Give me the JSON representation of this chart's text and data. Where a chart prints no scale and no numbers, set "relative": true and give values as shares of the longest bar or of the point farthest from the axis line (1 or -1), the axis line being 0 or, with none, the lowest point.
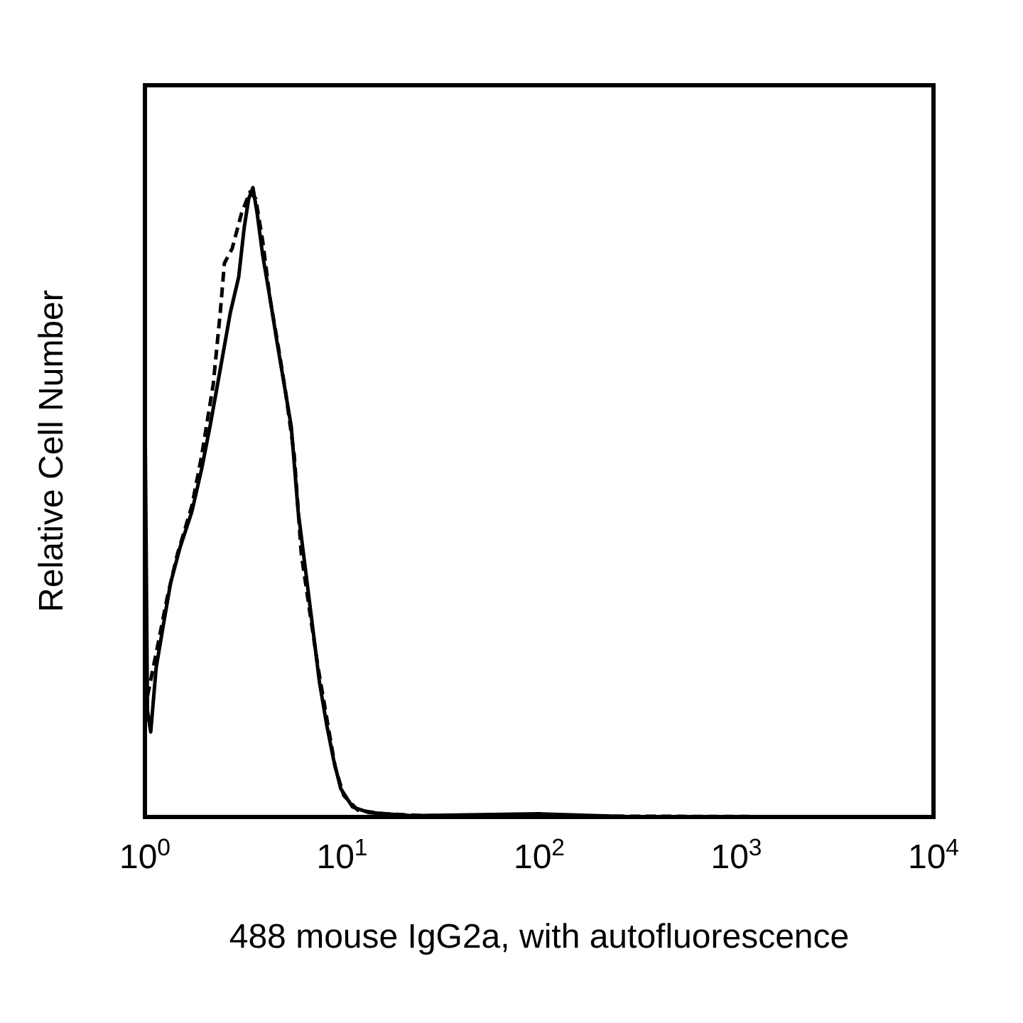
{
  "chart_data": {
    "type": "line",
    "relative": true,
    "log": "x",
    "xlabel": "488 mouse IgG2a, with autofluorescence",
    "ylabel": "Relative Cell Number",
    "xlim": [
      1,
      10000
    ],
    "xticks": [
      {
        "value": 1,
        "label": "10$^{0}$"
      },
      {
        "value": 10,
        "label": "10$^{1}$"
      },
      {
        "value": 100,
        "label": "10$^{2}$"
      },
      {
        "value": 1000,
        "label": "10$^{3}$"
      },
      {
        "value": 10000,
        "label": "10$^{4}$"
      }
    ],
    "grid": false,
    "series": [
      {
        "color": "#000000",
        "line_style": "solid",
        "x": [
          1,
          1.03,
          1.07,
          1.14,
          1.24,
          1.35,
          1.51,
          1.73,
          1.94,
          2.14,
          2.41,
          2.71,
          2.99,
          3.19,
          3.36,
          3.53,
          3.71,
          3.96,
          4.31,
          4.67,
          5.08,
          5.52,
          5.99,
          6.51,
          7.07,
          7.68,
          8.35,
          9.07,
          9.85,
          11.3,
          13.7,
          22.6,
          100,
          321,
          10000
        ],
        "values": [
          0.666,
          0.169,
          0.135,
          0.237,
          0.305,
          0.372,
          0.429,
          0.485,
          0.553,
          0.621,
          0.711,
          0.801,
          0.858,
          0.937,
          0.982,
          1,
          0.959,
          0.892,
          0.824,
          0.756,
          0.688,
          0.621,
          0.485,
          0.395,
          0.305,
          0.214,
          0.147,
          0.09,
          0.045,
          0.016,
          0.007,
          0.002,
          0.005,
          0,
          0
        ]
      },
      {
        "color": "#000000",
        "line_style": "dashed",
        "x": [
          1.03,
          1.14,
          1.3,
          1.46,
          1.73,
          1.94,
          2.22,
          2.41,
          2.53,
          2.77,
          3.09,
          3.41,
          3.65,
          3.96,
          4.31,
          4.76,
          5.16,
          5.72,
          6.21,
          6.85,
          7.56,
          8.35,
          9.23,
          10.2,
          12,
          16.2,
          26.7,
          10000
        ],
        "values": [
          0.192,
          0.26,
          0.35,
          0.417,
          0.494,
          0.574,
          0.687,
          0.801,
          0.88,
          0.903,
          0.959,
          0.993,
          0.982,
          0.914,
          0.824,
          0.745,
          0.677,
          0.575,
          0.418,
          0.327,
          0.237,
          0.158,
          0.079,
          0.034,
          0.011,
          0.005,
          0.002,
          0
        ]
      }
    ]
  }
}
